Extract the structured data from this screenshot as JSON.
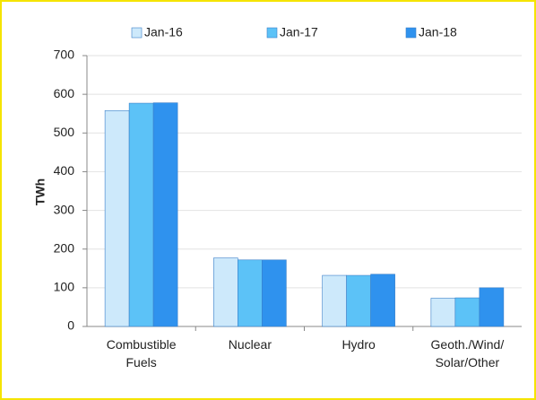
{
  "chart_data": {
    "type": "bar",
    "y_label": "TWh",
    "categories": [
      "Combustible\nFuels",
      "Nuclear",
      "Hydro",
      "Geoth./Wind/\nSolar/Other"
    ],
    "series": [
      {
        "name": "Jan-16",
        "color": "#cde9fb",
        "values": [
          558,
          177,
          132,
          73
        ]
      },
      {
        "name": "Jan-17",
        "color": "#5cc2f7",
        "values": [
          577,
          172,
          132,
          74
        ]
      },
      {
        "name": "Jan-18",
        "color": "#2f92ee",
        "values": [
          578,
          172,
          135,
          100
        ]
      }
    ],
    "ylim": [
      0,
      700
    ],
    "yticks": [
      0,
      100,
      200,
      300,
      400,
      500,
      600,
      700
    ],
    "grid": true
  }
}
